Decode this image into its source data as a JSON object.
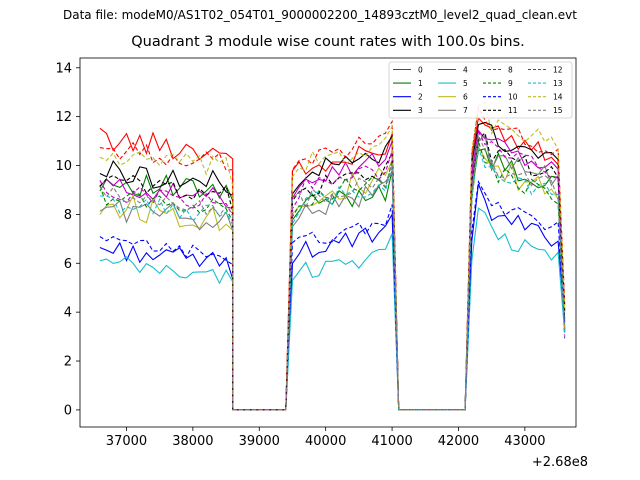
{
  "suptitle": "Data file: modeM0/AS1T02_054T01_9000002200_14893cztM0_level2_quad_clean.evt",
  "chart_data": {
    "type": "line",
    "title": "Quadrant 3 module wise count rates with 100.0s bins.",
    "xlabel": "",
    "ylabel": "",
    "x_offset_label": "+2.68e8",
    "xlim": [
      36300,
      43770
    ],
    "ylim": [
      -0.7,
      14.4
    ],
    "x_ticks": [
      37000,
      38000,
      39000,
      40000,
      41000,
      42000,
      43000
    ],
    "x_tick_labels": [
      "37000",
      "38000",
      "39000",
      "40000",
      "41000",
      "42000",
      "43000"
    ],
    "y_ticks": [
      0,
      2,
      4,
      6,
      8,
      10,
      12,
      14
    ],
    "y_tick_labels": [
      "0",
      "2",
      "4",
      "6",
      "8",
      "10",
      "12",
      "14"
    ],
    "grid": false,
    "legend": {
      "placement": "top-right",
      "columns": 4
    },
    "segments": [
      {
        "x_start": 36600,
        "n": 21,
        "step": 100
      },
      {
        "x_start": 38600,
        "n": 9,
        "step": 100
      },
      {
        "x_start": 39500,
        "n": 16,
        "step": 100
      },
      {
        "x_start": 41100,
        "n": 11,
        "step": 100
      },
      {
        "x_start": 42200,
        "n": 15,
        "step": 100
      }
    ],
    "series": [
      {
        "name": "0",
        "color": "#ff0000",
        "dash": "solid",
        "levels": [
          11.1,
          9.7,
          11.8
        ],
        "wiggle": 0.5
      },
      {
        "name": "1",
        "color": "#008000",
        "dash": "solid",
        "levels": [
          9.4,
          8.2,
          10.4
        ],
        "wiggle": 0.5
      },
      {
        "name": "2",
        "color": "#0000ff",
        "dash": "solid",
        "levels": [
          6.6,
          6.4,
          8.3
        ],
        "wiggle": 0.4
      },
      {
        "name": "3",
        "color": "#000000",
        "dash": "solid",
        "levels": [
          9.8,
          9.6,
          11.5
        ],
        "wiggle": 0.5
      },
      {
        "name": "4",
        "color": "#bf00bf",
        "dash": "solid",
        "levels": [
          9.2,
          9.4,
          11.1
        ],
        "wiggle": 0.4
      },
      {
        "name": "5",
        "color": "#17becf",
        "dash": "solid",
        "levels": [
          6.0,
          5.6,
          7.5
        ],
        "wiggle": 0.4
      },
      {
        "name": "6",
        "color": "#bcbd22",
        "dash": "solid",
        "levels": [
          8.4,
          8.6,
          10.1
        ],
        "wiggle": 0.6
      },
      {
        "name": "7",
        "color": "#7f7f7f",
        "dash": "solid",
        "levels": [
          8.3,
          8.1,
          10.6
        ],
        "wiggle": 0.5
      },
      {
        "name": "8",
        "color": "#ff0000",
        "dash": "dashed",
        "levels": [
          10.7,
          10.2,
          11.9
        ],
        "wiggle": 0.4
      },
      {
        "name": "9",
        "color": "#008000",
        "dash": "dashed",
        "levels": [
          8.8,
          8.6,
          10.0
        ],
        "wiggle": 0.4
      },
      {
        "name": "10",
        "color": "#0000ff",
        "dash": "dashed",
        "levels": [
          6.9,
          6.8,
          8.7
        ],
        "wiggle": 0.3
      },
      {
        "name": "11",
        "color": "#000000",
        "dash": "dashed",
        "levels": [
          9.4,
          8.9,
          10.8
        ],
        "wiggle": 0.4
      },
      {
        "name": "12",
        "color": "#bf00bf",
        "dash": "dashed",
        "levels": [
          9.0,
          9.0,
          10.9
        ],
        "wiggle": 0.4
      },
      {
        "name": "13",
        "color": "#17becf",
        "dash": "dashed",
        "levels": [
          8.5,
          8.4,
          10.0
        ],
        "wiggle": 0.4
      },
      {
        "name": "14",
        "color": "#bcbd22",
        "dash": "dashed",
        "levels": [
          10.4,
          10.0,
          12.0
        ],
        "wiggle": 0.5
      },
      {
        "name": "15",
        "color": "#7f7f7f",
        "dash": "dashed",
        "levels": [
          8.8,
          8.5,
          10.3
        ],
        "wiggle": 0.4
      }
    ]
  }
}
